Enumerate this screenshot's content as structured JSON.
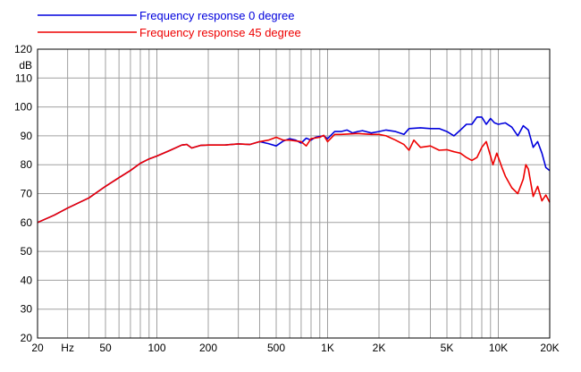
{
  "chart_data": {
    "type": "line",
    "title": "",
    "xlabel": "",
    "ylabel": "dB",
    "x_scale": "log",
    "xlim": [
      20,
      20000
    ],
    "ylim": [
      20,
      120
    ],
    "grid": true,
    "legend_position": "top-left",
    "x_tick_labels": [
      {
        "value": 20,
        "label": "20"
      },
      {
        "value": 30,
        "label": "Hz"
      },
      {
        "value": 50,
        "label": "50"
      },
      {
        "value": 100,
        "label": "100"
      },
      {
        "value": 200,
        "label": "200"
      },
      {
        "value": 500,
        "label": "500"
      },
      {
        "value": 1000,
        "label": "1K"
      },
      {
        "value": 2000,
        "label": "2K"
      },
      {
        "value": 5000,
        "label": "5K"
      },
      {
        "value": 10000,
        "label": "10K"
      },
      {
        "value": 20000,
        "label": "20K"
      }
    ],
    "y_ticks": [
      20,
      30,
      40,
      50,
      60,
      70,
      80,
      90,
      100,
      110,
      120
    ],
    "series": [
      {
        "name": "Frequency response 0 degree",
        "color": "#0000dd",
        "points": [
          [
            20,
            60
          ],
          [
            25,
            62.5
          ],
          [
            30,
            65
          ],
          [
            40,
            68.5
          ],
          [
            50,
            72.5
          ],
          [
            60,
            75.5
          ],
          [
            70,
            78
          ],
          [
            80,
            80.5
          ],
          [
            90,
            82
          ],
          [
            100,
            83
          ],
          [
            120,
            85
          ],
          [
            140,
            86.8
          ],
          [
            150,
            87
          ],
          [
            160,
            85.8
          ],
          [
            180,
            86.7
          ],
          [
            200,
            86.8
          ],
          [
            250,
            86.8
          ],
          [
            300,
            87.2
          ],
          [
            350,
            87
          ],
          [
            400,
            88
          ],
          [
            450,
            87.3
          ],
          [
            500,
            86.5
          ],
          [
            550,
            88.2
          ],
          [
            600,
            89
          ],
          [
            650,
            88.5
          ],
          [
            700,
            87.5
          ],
          [
            750,
            89.2
          ],
          [
            800,
            88.5
          ],
          [
            850,
            89.5
          ],
          [
            900,
            89.8
          ],
          [
            950,
            90
          ],
          [
            1000,
            89
          ],
          [
            1100,
            91.5
          ],
          [
            1200,
            91.5
          ],
          [
            1300,
            92
          ],
          [
            1400,
            91
          ],
          [
            1500,
            91.5
          ],
          [
            1600,
            91.8
          ],
          [
            1800,
            91
          ],
          [
            2000,
            91.5
          ],
          [
            2200,
            92
          ],
          [
            2500,
            91.5
          ],
          [
            2800,
            90.5
          ],
          [
            3000,
            92.5
          ],
          [
            3500,
            92.8
          ],
          [
            4000,
            92.5
          ],
          [
            4500,
            92.5
          ],
          [
            5000,
            91.5
          ],
          [
            5500,
            90
          ],
          [
            6000,
            92
          ],
          [
            6500,
            94
          ],
          [
            7000,
            94
          ],
          [
            7500,
            96.5
          ],
          [
            8000,
            96.5
          ],
          [
            8500,
            94
          ],
          [
            9000,
            96
          ],
          [
            9500,
            94.5
          ],
          [
            10000,
            94
          ],
          [
            11000,
            94.5
          ],
          [
            12000,
            93
          ],
          [
            13000,
            90
          ],
          [
            14000,
            93.5
          ],
          [
            15000,
            92
          ],
          [
            16000,
            86
          ],
          [
            17000,
            88
          ],
          [
            18000,
            84
          ],
          [
            19000,
            79
          ],
          [
            20000,
            78
          ]
        ]
      },
      {
        "name": "Frequency response 45 degree",
        "color": "#ee0000",
        "points": [
          [
            20,
            60
          ],
          [
            25,
            62.5
          ],
          [
            30,
            65
          ],
          [
            40,
            68.5
          ],
          [
            50,
            72.5
          ],
          [
            60,
            75.5
          ],
          [
            70,
            78
          ],
          [
            80,
            80.5
          ],
          [
            90,
            82
          ],
          [
            100,
            83
          ],
          [
            120,
            85
          ],
          [
            140,
            86.8
          ],
          [
            150,
            87
          ],
          [
            160,
            85.8
          ],
          [
            180,
            86.7
          ],
          [
            200,
            86.8
          ],
          [
            250,
            86.8
          ],
          [
            300,
            87.2
          ],
          [
            350,
            87
          ],
          [
            400,
            88
          ],
          [
            450,
            88.5
          ],
          [
            500,
            89.5
          ],
          [
            550,
            88.5
          ],
          [
            600,
            88.5
          ],
          [
            700,
            88
          ],
          [
            750,
            86.5
          ],
          [
            800,
            89
          ],
          [
            900,
            89.5
          ],
          [
            950,
            90.2
          ],
          [
            1000,
            88
          ],
          [
            1100,
            90.5
          ],
          [
            1200,
            90.5
          ],
          [
            1500,
            90.8
          ],
          [
            1800,
            90.5
          ],
          [
            2000,
            90.5
          ],
          [
            2200,
            90
          ],
          [
            2500,
            88.5
          ],
          [
            2800,
            87
          ],
          [
            3000,
            85
          ],
          [
            3200,
            88.5
          ],
          [
            3500,
            86
          ],
          [
            4000,
            86.5
          ],
          [
            4500,
            85
          ],
          [
            5000,
            85.2
          ],
          [
            5500,
            84.5
          ],
          [
            6000,
            84
          ],
          [
            6500,
            82.5
          ],
          [
            7000,
            81.5
          ],
          [
            7500,
            82.5
          ],
          [
            8000,
            86
          ],
          [
            8500,
            88
          ],
          [
            9000,
            83
          ],
          [
            9300,
            80
          ],
          [
            9800,
            84
          ],
          [
            10500,
            79
          ],
          [
            11000,
            76
          ],
          [
            12000,
            72
          ],
          [
            13000,
            70
          ],
          [
            14000,
            75
          ],
          [
            14500,
            80
          ],
          [
            15000,
            78.5
          ],
          [
            16000,
            69
          ],
          [
            17000,
            72.5
          ],
          [
            18000,
            67.5
          ],
          [
            19000,
            69.5
          ],
          [
            20000,
            67
          ]
        ]
      }
    ]
  }
}
